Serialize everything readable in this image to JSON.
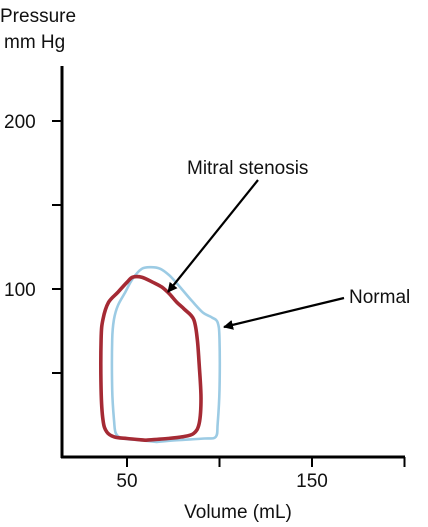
{
  "chart_data": {
    "type": "line",
    "title": "",
    "ylabel_lines": [
      "Pressure",
      "mm Hg"
    ],
    "xlabel": "Volume (mL)",
    "xlim": [
      0,
      200
    ],
    "ylim": [
      0,
      240
    ],
    "x_ticks": [
      50,
      100,
      150,
      200
    ],
    "x_tick_labels": [
      {
        "value": 50,
        "label": "50"
      },
      {
        "value": 150,
        "label": "150"
      }
    ],
    "y_ticks": [
      50,
      100,
      150,
      200
    ],
    "y_tick_labels": [
      {
        "value": 100,
        "label": "100"
      },
      {
        "value": 200,
        "label": "200"
      }
    ],
    "grid": false,
    "series": [
      {
        "name": "Normal",
        "color": "#9ccbe4",
        "points": [
          [
            66,
            9
          ],
          [
            77,
            10
          ],
          [
            92,
            11
          ],
          [
            98,
            12
          ],
          [
            99,
            20
          ],
          [
            100,
            40
          ],
          [
            100,
            70
          ],
          [
            99,
            80
          ],
          [
            96,
            83
          ],
          [
            91,
            86
          ],
          [
            85,
            93
          ],
          [
            78,
            102
          ],
          [
            73,
            108
          ],
          [
            68,
            112
          ],
          [
            63,
            113
          ],
          [
            58,
            112
          ],
          [
            53,
            106
          ],
          [
            49,
            98
          ],
          [
            45,
            90
          ],
          [
            43,
            82
          ],
          [
            42,
            70
          ],
          [
            42,
            40
          ],
          [
            43,
            22
          ],
          [
            44,
            14
          ],
          [
            48,
            11
          ],
          [
            57,
            10
          ],
          [
            66,
            9
          ]
        ]
      },
      {
        "name": "Mitral stenosis",
        "color": "#a52a34",
        "points": [
          [
            60,
            10
          ],
          [
            72,
            11
          ],
          [
            80,
            12
          ],
          [
            86,
            14
          ],
          [
            89,
            20
          ],
          [
            90,
            35
          ],
          [
            89,
            55
          ],
          [
            88,
            70
          ],
          [
            86,
            82
          ],
          [
            81,
            88
          ],
          [
            77,
            92
          ],
          [
            73,
            97
          ],
          [
            69,
            101
          ],
          [
            64,
            104
          ],
          [
            58,
            107
          ],
          [
            53,
            107
          ],
          [
            50,
            104
          ],
          [
            45,
            98
          ],
          [
            40,
            92
          ],
          [
            37,
            82
          ],
          [
            36,
            70
          ],
          [
            36,
            40
          ],
          [
            37,
            22
          ],
          [
            39,
            15
          ],
          [
            43,
            12
          ],
          [
            50,
            11
          ],
          [
            60,
            10
          ]
        ]
      }
    ],
    "annotations": [
      {
        "text": "Mitral stenosis",
        "target": [
          61,
          100
        ]
      },
      {
        "text": "Normal",
        "target": [
          99,
          80
        ]
      }
    ]
  }
}
